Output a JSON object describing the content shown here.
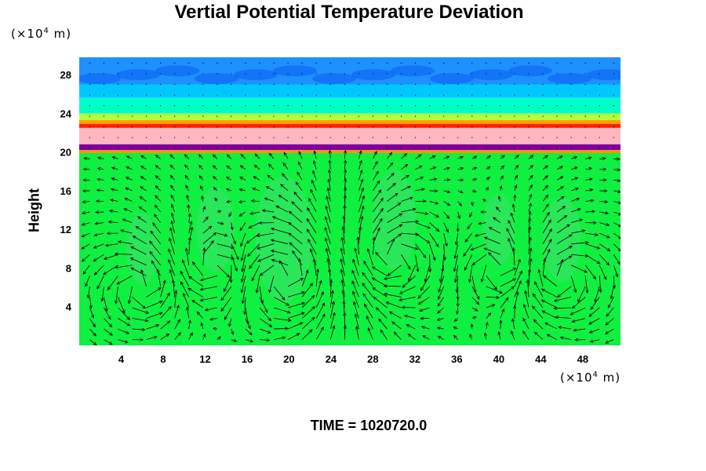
{
  "chart_data": {
    "type": "heatmap",
    "title": "Vertial Potential Temperature Deviation",
    "ylabel": "Height",
    "y_unit": "(×10",
    "y_unit_exp": "4",
    "y_unit_tail": " m)",
    "x_unit": "(×10",
    "x_unit_exp": "4",
    "x_unit_tail": " m)",
    "xlim": [
      0,
      51.6
    ],
    "ylim": [
      0,
      29.8
    ],
    "x_ticks": [
      4,
      8,
      12,
      16,
      20,
      24,
      28,
      32,
      36,
      40,
      44,
      48
    ],
    "y_ticks": [
      4,
      8,
      12,
      16,
      20,
      24,
      28
    ],
    "layers": [
      {
        "y0": 27.0,
        "y1": 29.8,
        "color": "#1e90ff"
      },
      {
        "y0": 25.6,
        "y1": 27.0,
        "color": "#00c8ff"
      },
      {
        "y0": 24.0,
        "y1": 25.6,
        "color": "#00ffc8"
      },
      {
        "y0": 23.3,
        "y1": 24.0,
        "color": "#b4ff3c"
      },
      {
        "y0": 22.9,
        "y1": 23.3,
        "color": "#ffa000"
      },
      {
        "y0": 22.5,
        "y1": 22.9,
        "color": "#ff2000"
      },
      {
        "y0": 20.8,
        "y1": 22.5,
        "color": "#ffb8c0"
      },
      {
        "y0": 20.2,
        "y1": 20.8,
        "color": "#8000a0"
      },
      {
        "y0": 19.9,
        "y1": 20.2,
        "color": "#ff9000"
      },
      {
        "y0": 0.0,
        "y1": 19.9,
        "color": "#10f040"
      }
    ],
    "vortices": [
      {
        "x": 6.0,
        "y": 6.0,
        "r": 5
      },
      {
        "x": 13.0,
        "y": 8.0,
        "r": 6
      },
      {
        "x": 19.5,
        "y": 7.0,
        "r": 9
      },
      {
        "x": 30.0,
        "y": 9.0,
        "r": 7
      },
      {
        "x": 40.0,
        "y": 8.0,
        "r": 5
      },
      {
        "x": 46.0,
        "y": 7.0,
        "r": 6
      }
    ],
    "time_label": "TIME = 1020720.0"
  }
}
